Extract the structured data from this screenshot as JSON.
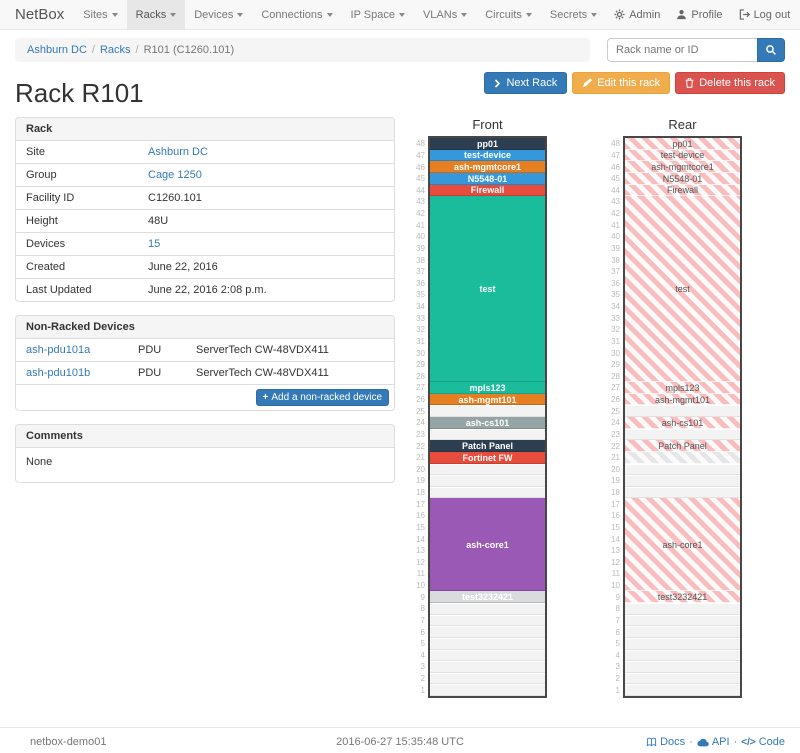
{
  "navbar": {
    "brand": "NetBox",
    "items": [
      {
        "label": "Sites",
        "active": false
      },
      {
        "label": "Racks",
        "active": true
      },
      {
        "label": "Devices",
        "active": false
      },
      {
        "label": "Connections",
        "active": false
      },
      {
        "label": "IP Space",
        "active": false
      },
      {
        "label": "VLANs",
        "active": false
      },
      {
        "label": "Circuits",
        "active": false
      },
      {
        "label": "Secrets",
        "active": false
      }
    ],
    "right": [
      {
        "label": "Admin",
        "icon": "gear-icon"
      },
      {
        "label": "Profile",
        "icon": "user-icon"
      },
      {
        "label": "Log out",
        "icon": "logout-icon"
      }
    ]
  },
  "breadcrumb": {
    "separator": "/",
    "items": [
      {
        "label": "Ashburn DC",
        "link": true
      },
      {
        "label": "Racks",
        "link": true
      },
      {
        "label": "R101 (C1260.101)",
        "link": false
      }
    ]
  },
  "search": {
    "placeholder": "Rack name or ID"
  },
  "actions": {
    "next": "Next Rack",
    "edit": "Edit this rack",
    "delete": "Delete this rack"
  },
  "page_title": "Rack R101",
  "rack_panel": {
    "title": "Rack",
    "rows": [
      {
        "label": "Site",
        "value": "Ashburn DC",
        "link": true
      },
      {
        "label": "Group",
        "value": "Cage 1250",
        "link": true
      },
      {
        "label": "Facility ID",
        "value": "C1260.101",
        "link": false
      },
      {
        "label": "Height",
        "value": "48U",
        "link": false
      },
      {
        "label": "Devices",
        "value": "15",
        "link": true
      },
      {
        "label": "Created",
        "value": "June 22, 2016",
        "link": false
      },
      {
        "label": "Last Updated",
        "value": "June 22, 2016 2:08 p.m.",
        "link": false
      }
    ]
  },
  "nonracked_panel": {
    "title": "Non-Racked Devices",
    "rows": [
      {
        "name": "ash-pdu101a",
        "type": "PDU",
        "model": "ServerTech CW-48VDX411"
      },
      {
        "name": "ash-pdu101b",
        "type": "PDU",
        "model": "ServerTech CW-48VDX411"
      }
    ],
    "add_button": "Add a non-racked device"
  },
  "comments_panel": {
    "title": "Comments",
    "body": "None"
  },
  "elevations": {
    "front": {
      "title": "Front",
      "top_unit": 48,
      "units": [
        {
          "u": 48,
          "span": 1,
          "label": "pp01",
          "style": "dark"
        },
        {
          "u": 47,
          "span": 1,
          "label": "test-device",
          "style": "blue"
        },
        {
          "u": 46,
          "span": 1,
          "label": "ash-mgmtcore1",
          "style": "orange"
        },
        {
          "u": 45,
          "span": 1,
          "label": "N5548-01",
          "style": "blue"
        },
        {
          "u": 44,
          "span": 1,
          "label": "Firewall",
          "style": "red"
        },
        {
          "u": 43,
          "span": 16,
          "label": "test",
          "style": "teal"
        },
        {
          "u": 27,
          "span": 1,
          "label": "mpls123",
          "style": "teal"
        },
        {
          "u": 26,
          "span": 1,
          "label": "ash-mgmt101",
          "style": "orange"
        },
        {
          "u": 25,
          "span": 1,
          "label": "",
          "style": "empty"
        },
        {
          "u": 24,
          "span": 1,
          "label": "ash-cs101",
          "style": "gray"
        },
        {
          "u": 23,
          "span": 1,
          "label": "",
          "style": "empty"
        },
        {
          "u": 22,
          "span": 1,
          "label": "Patch Panel",
          "style": "dark"
        },
        {
          "u": 21,
          "span": 1,
          "label": "Fortinet FW",
          "style": "red"
        },
        {
          "u": 20,
          "span": 1,
          "label": "",
          "style": "empty"
        },
        {
          "u": 19,
          "span": 1,
          "label": "",
          "style": "empty"
        },
        {
          "u": 18,
          "span": 1,
          "label": "",
          "style": "empty"
        },
        {
          "u": 17,
          "span": 8,
          "label": "ash-core1",
          "style": "purple"
        },
        {
          "u": 9,
          "span": 1,
          "label": "test3232421",
          "style": "lightgray"
        },
        {
          "u": 8,
          "span": 1,
          "label": "",
          "style": "empty"
        },
        {
          "u": 7,
          "span": 1,
          "label": "",
          "style": "empty"
        },
        {
          "u": 6,
          "span": 1,
          "label": "",
          "style": "empty"
        },
        {
          "u": 5,
          "span": 1,
          "label": "",
          "style": "empty"
        },
        {
          "u": 4,
          "span": 1,
          "label": "",
          "style": "empty"
        },
        {
          "u": 3,
          "span": 1,
          "label": "",
          "style": "empty"
        },
        {
          "u": 2,
          "span": 1,
          "label": "",
          "style": "empty"
        },
        {
          "u": 1,
          "span": 1,
          "label": "",
          "style": "empty"
        }
      ]
    },
    "rear": {
      "title": "Rear",
      "top_unit": 48,
      "units": [
        {
          "u": 48,
          "span": 1,
          "label": "pp01",
          "style": "hatch"
        },
        {
          "u": 47,
          "span": 1,
          "label": "test-device",
          "style": "hatch"
        },
        {
          "u": 46,
          "span": 1,
          "label": "ash-mgmtcore1",
          "style": "hatch"
        },
        {
          "u": 45,
          "span": 1,
          "label": "N5548-01",
          "style": "hatch"
        },
        {
          "u": 44,
          "span": 1,
          "label": "Firewall",
          "style": "hatch"
        },
        {
          "u": 43,
          "span": 16,
          "label": "test",
          "style": "hatch"
        },
        {
          "u": 27,
          "span": 1,
          "label": "mpls123",
          "style": "hatch"
        },
        {
          "u": 26,
          "span": 1,
          "label": "ash-mgmt101",
          "style": "hatch"
        },
        {
          "u": 25,
          "span": 1,
          "label": "",
          "style": "empty"
        },
        {
          "u": 24,
          "span": 1,
          "label": "ash-cs101",
          "style": "hatch"
        },
        {
          "u": 23,
          "span": 1,
          "label": "",
          "style": "empty"
        },
        {
          "u": 22,
          "span": 1,
          "label": "Patch Panel",
          "style": "hatch"
        },
        {
          "u": 21,
          "span": 1,
          "label": "",
          "style": "hatch-gray"
        },
        {
          "u": 20,
          "span": 1,
          "label": "",
          "style": "empty"
        },
        {
          "u": 19,
          "span": 1,
          "label": "",
          "style": "empty"
        },
        {
          "u": 18,
          "span": 1,
          "label": "",
          "style": "empty"
        },
        {
          "u": 17,
          "span": 8,
          "label": "ash-core1",
          "style": "hatch"
        },
        {
          "u": 9,
          "span": 1,
          "label": "test3232421",
          "style": "hatch"
        },
        {
          "u": 8,
          "span": 1,
          "label": "",
          "style": "empty"
        },
        {
          "u": 7,
          "span": 1,
          "label": "",
          "style": "empty"
        },
        {
          "u": 6,
          "span": 1,
          "label": "",
          "style": "empty"
        },
        {
          "u": 5,
          "span": 1,
          "label": "",
          "style": "empty"
        },
        {
          "u": 4,
          "span": 1,
          "label": "",
          "style": "empty"
        },
        {
          "u": 3,
          "span": 1,
          "label": "",
          "style": "empty"
        },
        {
          "u": 2,
          "span": 1,
          "label": "",
          "style": "empty"
        },
        {
          "u": 1,
          "span": 1,
          "label": "",
          "style": "empty"
        }
      ]
    }
  },
  "footer": {
    "hostname": "netbox-demo01",
    "timestamp": "2016-06-27 15:35:48 UTC",
    "separator": "·",
    "links": [
      {
        "label": "Docs",
        "icon": "book-icon"
      },
      {
        "label": "API",
        "icon": "cloud-icon"
      },
      {
        "label": "Code",
        "icon": "code-icon"
      }
    ]
  },
  "colors": {
    "accent": "#337ab7",
    "warning": "#f0ad4e",
    "danger": "#d9534f",
    "block_palette": {
      "dark": "#2c3e50",
      "blue": "#3498db",
      "orange": "#e67e22",
      "red": "#e74c3c",
      "teal": "#1abc9c",
      "gray": "#95a5a6",
      "purple": "#9b59b6",
      "lightgray": "#d8dcde"
    },
    "hatch": {
      "pink": "#fabdbd",
      "gray": "#e6e6e6",
      "bg": "#fafafa"
    }
  }
}
